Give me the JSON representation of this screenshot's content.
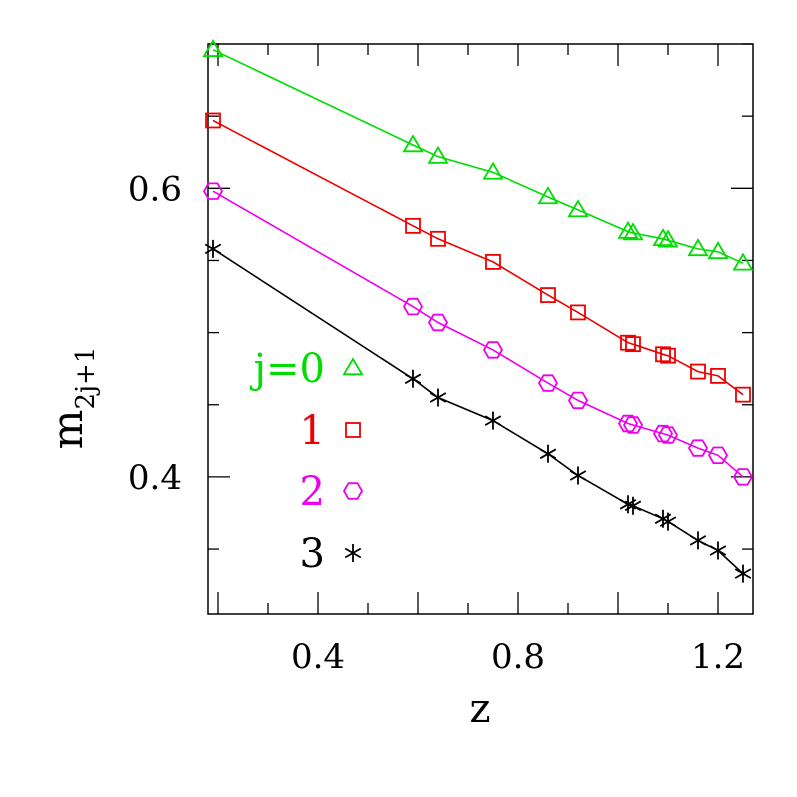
{
  "chart_data": {
    "type": "scatter",
    "title": "",
    "xlabel": "z",
    "ylabel": {
      "base": "m",
      "subscript": "2j+1"
    },
    "xlim": [
      0.18,
      1.27
    ],
    "ylim": [
      0.305,
      0.7
    ],
    "xticks": [
      {
        "value": 0.4,
        "label": "0.4"
      },
      {
        "value": 0.8,
        "label": "0.8"
      },
      {
        "value": 1.2,
        "label": "1.2"
      }
    ],
    "yticks": [
      {
        "value": 0.4,
        "label": "0.4"
      },
      {
        "value": 0.6,
        "label": "0.6"
      }
    ],
    "x": [
      0.19,
      0.59,
      0.64,
      0.75,
      0.86,
      0.92,
      1.02,
      1.03,
      1.09,
      1.1,
      1.16,
      1.2,
      1.25
    ],
    "series": [
      {
        "name": "j=0",
        "legend_label": "j=0",
        "color": "#00dd00",
        "marker": "triangle",
        "values": [
          0.696,
          0.63,
          0.622,
          0.611,
          0.594,
          0.585,
          0.57,
          0.569,
          0.565,
          0.564,
          0.558,
          0.556,
          0.548
        ]
      },
      {
        "name": "1",
        "legend_label": "1",
        "color": "#ee0000",
        "marker": "square",
        "values": [
          0.647,
          0.574,
          0.565,
          0.549,
          0.526,
          0.514,
          0.493,
          0.492,
          0.485,
          0.484,
          0.473,
          0.47,
          0.457
        ]
      },
      {
        "name": "2",
        "legend_label": "2",
        "color": "#ee00ee",
        "marker": "hexagon",
        "values": [
          0.598,
          0.518,
          0.507,
          0.488,
          0.465,
          0.453,
          0.437,
          0.436,
          0.43,
          0.429,
          0.42,
          0.415,
          0.4
        ]
      },
      {
        "name": "3",
        "legend_label": "3",
        "color": "#000000",
        "marker": "star",
        "values": [
          0.558,
          0.468,
          0.455,
          0.439,
          0.416,
          0.401,
          0.381,
          0.38,
          0.371,
          0.369,
          0.356,
          0.349,
          0.333
        ]
      }
    ],
    "grid": false,
    "legend_position": "left"
  }
}
